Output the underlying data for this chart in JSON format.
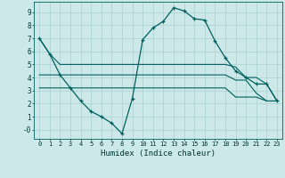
{
  "xlabel": "Humidex (Indice chaleur)",
  "background_color": "#cde8e8",
  "grid_color": "#aed4d4",
  "line_color": "#006060",
  "x_ticks": [
    0,
    1,
    2,
    3,
    4,
    5,
    6,
    7,
    8,
    9,
    10,
    11,
    12,
    13,
    14,
    15,
    16,
    17,
    18,
    19,
    20,
    21,
    22,
    23
  ],
  "y_ticks": [
    0,
    1,
    2,
    3,
    4,
    5,
    6,
    7,
    8,
    9
  ],
  "ylim": [
    -0.7,
    9.8
  ],
  "xlim": [
    -0.5,
    23.5
  ],
  "curve_main_x": [
    0,
    1,
    2,
    3,
    4,
    5,
    6,
    7,
    8,
    9,
    10,
    11,
    12,
    13,
    14,
    15,
    16,
    17,
    18,
    19,
    20,
    21,
    22,
    23
  ],
  "curve_main_y": [
    7.0,
    5.8,
    4.2,
    3.2,
    2.2,
    1.4,
    1.0,
    0.5,
    -0.3,
    2.4,
    6.9,
    7.8,
    8.3,
    9.35,
    9.1,
    8.5,
    8.4,
    6.8,
    5.5,
    4.5,
    4.0,
    3.5,
    3.5,
    2.2
  ],
  "curve_upper_x": [
    0,
    1,
    2,
    3,
    4,
    5,
    6,
    7,
    8,
    9,
    10,
    11,
    12,
    13,
    14,
    15,
    16,
    17,
    18,
    19,
    20,
    21,
    22,
    23
  ],
  "curve_upper_y": [
    7.0,
    5.8,
    5.0,
    5.0,
    5.0,
    5.0,
    5.0,
    5.0,
    5.0,
    5.0,
    5.0,
    5.0,
    5.0,
    5.0,
    5.0,
    5.0,
    5.0,
    5.0,
    5.0,
    4.8,
    4.0,
    4.0,
    3.5,
    2.2
  ],
  "curve_mid_x": [
    0,
    1,
    2,
    3,
    4,
    5,
    6,
    7,
    8,
    9,
    10,
    11,
    12,
    13,
    14,
    15,
    16,
    17,
    18,
    19,
    20,
    21,
    22,
    23
  ],
  "curve_mid_y": [
    4.2,
    4.2,
    4.2,
    4.2,
    4.2,
    4.2,
    4.2,
    4.2,
    4.2,
    4.2,
    4.2,
    4.2,
    4.2,
    4.2,
    4.2,
    4.2,
    4.2,
    4.2,
    4.2,
    3.8,
    3.8,
    2.8,
    2.2,
    2.2
  ],
  "curve_lower_x": [
    0,
    1,
    2,
    3,
    4,
    5,
    6,
    7,
    8,
    9,
    10,
    11,
    12,
    13,
    14,
    15,
    16,
    17,
    18,
    19,
    20,
    21,
    22,
    23
  ],
  "curve_lower_y": [
    3.2,
    3.2,
    3.2,
    3.2,
    3.2,
    3.2,
    3.2,
    3.2,
    3.2,
    3.2,
    3.2,
    3.2,
    3.2,
    3.2,
    3.2,
    3.2,
    3.2,
    3.2,
    3.2,
    2.5,
    2.5,
    2.5,
    2.2,
    2.2
  ]
}
